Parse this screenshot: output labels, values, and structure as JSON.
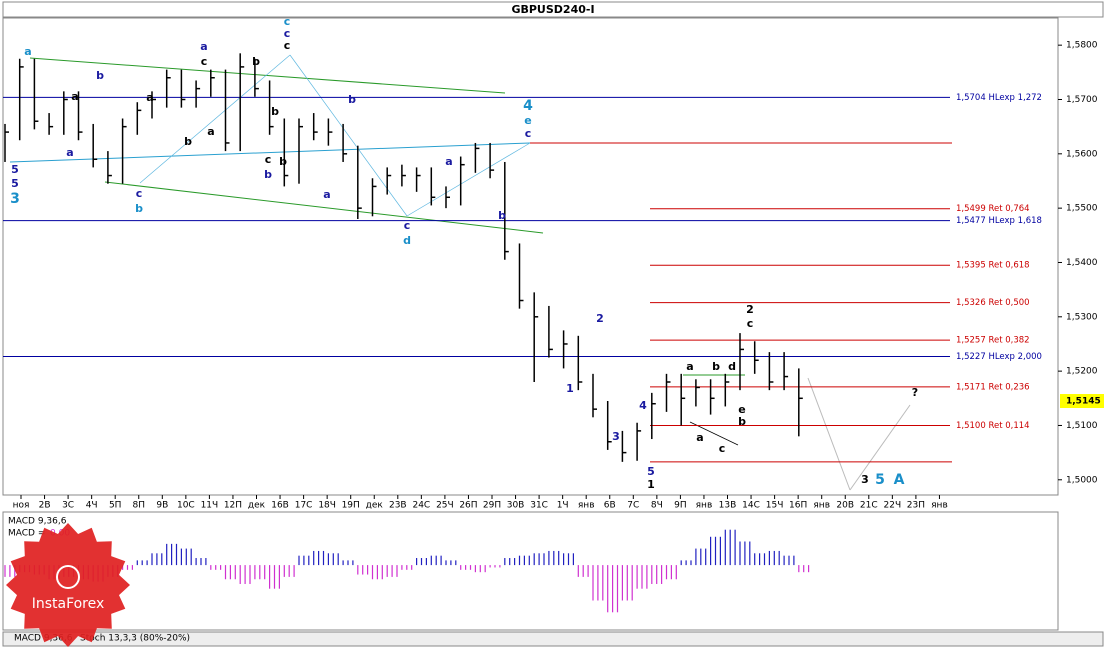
{
  "chart_data": {
    "type": "ohlc",
    "title": "GBPUSD240-I",
    "ylim": [
      1.4972,
      1.585
    ],
    "yticks": [
      {
        "value": 1.5,
        "label": "1,5000"
      },
      {
        "value": 1.51,
        "label": "1,5100"
      },
      {
        "value": 1.52,
        "label": "1,5200"
      },
      {
        "value": 1.53,
        "label": "1,5300"
      },
      {
        "value": 1.54,
        "label": "1,5400"
      },
      {
        "value": 1.55,
        "label": "1,5500"
      },
      {
        "value": 1.56,
        "label": "1,5600"
      },
      {
        "value": 1.57,
        "label": "1,5700"
      },
      {
        "value": 1.58,
        "label": "1,5800"
      }
    ],
    "x_labels": [
      "ноя",
      "2В",
      "3С",
      "4Ч",
      "5П",
      "8П",
      "9В",
      "10С",
      "11Ч",
      "12П",
      "дек",
      "16В",
      "17С",
      "18Ч",
      "19П",
      "дек",
      "23В",
      "24С",
      "25Ч",
      "26П",
      "29П",
      "30В",
      "31С",
      "1Ч",
      "янв",
      "6В",
      "7С",
      "8Ч",
      "9П",
      "янв",
      "13В",
      "14С",
      "15Ч",
      "16П",
      "янв",
      "20В",
      "21С",
      "22Ч",
      "23П",
      "янв"
    ],
    "bar_color": "#000000",
    "high": [
      1.5655,
      1.5775,
      1.5775,
      1.5675,
      1.5715,
      1.5715,
      1.5655,
      1.5605,
      1.5665,
      1.5695,
      1.5715,
      1.5755,
      1.5755,
      1.5735,
      1.5755,
      1.5755,
      1.5785,
      1.5775,
      1.5735,
      1.5665,
      1.5665,
      1.5675,
      1.5665,
      1.5655,
      1.5615,
      1.5555,
      1.5575,
      1.558,
      1.5575,
      1.5575,
      1.554,
      1.5595,
      1.562,
      1.562,
      1.5585,
      1.5435,
      1.5345,
      1.532,
      1.5275,
      1.5265,
      1.5195,
      1.5145,
      1.509,
      1.5105,
      1.516,
      1.5195,
      1.5195,
      1.5185,
      1.5185,
      1.5195,
      1.527,
      1.5255,
      1.5235,
      1.5235,
      1.5205
    ],
    "low": [
      1.5585,
      1.5625,
      1.5645,
      1.5635,
      1.5635,
      1.5625,
      1.5575,
      1.5545,
      1.5545,
      1.5635,
      1.5665,
      1.5685,
      1.5685,
      1.5685,
      1.5705,
      1.5605,
      1.5605,
      1.5705,
      1.5635,
      1.554,
      1.5545,
      1.5625,
      1.5615,
      1.5585,
      1.548,
      1.5485,
      1.5525,
      1.554,
      1.553,
      1.5505,
      1.55,
      1.5505,
      1.5565,
      1.5555,
      1.5405,
      1.5315,
      1.518,
      1.5225,
      1.5205,
      1.5165,
      1.5115,
      1.5055,
      1.5033,
      1.5035,
      1.5075,
      1.5125,
      1.51,
      1.5135,
      1.512,
      1.5135,
      1.5165,
      1.5195,
      1.5165,
      1.5165,
      1.508
    ],
    "close": [
      1.564,
      1.576,
      1.566,
      1.565,
      1.57,
      1.564,
      1.559,
      1.556,
      1.565,
      1.568,
      1.57,
      1.574,
      1.57,
      1.572,
      1.574,
      1.562,
      1.576,
      1.572,
      1.565,
      1.556,
      1.565,
      1.564,
      1.564,
      1.56,
      1.55,
      1.554,
      1.556,
      1.556,
      1.556,
      1.552,
      1.552,
      1.558,
      1.561,
      1.557,
      1.542,
      1.533,
      1.53,
      1.524,
      1.525,
      1.518,
      1.513,
      1.507,
      1.505,
      1.509,
      1.514,
      1.518,
      1.515,
      1.517,
      1.515,
      1.518,
      1.524,
      1.522,
      1.518,
      1.519,
      1.515
    ],
    "last_price": {
      "value": 1.5145,
      "label": "1,5145"
    },
    "levels": [
      {
        "value": 1.5704,
        "label": "1,5704 HLexp 1,272",
        "color": "#0000a0"
      },
      {
        "value": 1.562,
        "color": "#cc0000"
      },
      {
        "value": 1.5499,
        "label": "1,5499 Ret 0,764",
        "color": "#cc0000"
      },
      {
        "value": 1.5477,
        "label": "1,5477 HLexp 1,618",
        "color": "#0000a0"
      },
      {
        "value": 1.5395,
        "label": "1,5395 Ret 0,618",
        "color": "#cc0000"
      },
      {
        "value": 1.5326,
        "label": "1,5326 Ret 0,500",
        "color": "#cc0000"
      },
      {
        "value": 1.5257,
        "label": "1,5257 Ret 0,382",
        "color": "#cc0000"
      },
      {
        "value": 1.5227,
        "label": "1,5227 HLexp 2,000",
        "color": "#0000a0"
      },
      {
        "value": 1.5171,
        "label": "1,5171 Ret 0,236",
        "color": "#cc0000"
      },
      {
        "value": 1.51,
        "label": "1,5100 Ret 0,114",
        "color": "#cc0000"
      },
      {
        "value": 1.5033,
        "color": "#cc0000"
      }
    ],
    "annotations": [
      {
        "text": "a",
        "color": "#1a8fc9"
      },
      {
        "text": "5",
        "color": "#1a1aa0"
      },
      {
        "text": "5",
        "color": "#1a1aa0"
      },
      {
        "text": "3",
        "color": "#1a8fc9"
      },
      {
        "text": "b",
        "color": "#1a1aa0"
      },
      {
        "text": "a",
        "color": "#1a1aa0"
      },
      {
        "text": "a",
        "color": "#000000"
      },
      {
        "text": "c",
        "color": "#1a1aa0"
      },
      {
        "text": "b",
        "color": "#1a8fc9"
      },
      {
        "text": "a",
        "color": "#000000"
      },
      {
        "text": "b",
        "color": "#000000"
      },
      {
        "text": "a",
        "color": "#1a1aa0"
      },
      {
        "text": "c",
        "color": "#000000"
      },
      {
        "text": "a",
        "color": "#000000"
      },
      {
        "text": "c",
        "color": "#1a8fc9"
      },
      {
        "text": "c",
        "color": "#1a1aa0"
      },
      {
        "text": "c",
        "color": "#000000"
      },
      {
        "text": "b",
        "color": "#000000"
      },
      {
        "text": "b",
        "color": "#000000"
      },
      {
        "text": "c",
        "color": "#000000"
      },
      {
        "text": "b",
        "color": "#000000"
      },
      {
        "text": "b",
        "color": "#1a1aa0"
      },
      {
        "text": "a",
        "color": "#1a1aa0"
      },
      {
        "text": "b",
        "color": "#1a1aa0"
      },
      {
        "text": "4",
        "color": "#1a8fc9"
      },
      {
        "text": "e",
        "color": "#1a8fc9"
      },
      {
        "text": "c",
        "color": "#1a1aa0"
      },
      {
        "text": "a",
        "color": "#1a1aa0"
      },
      {
        "text": "b",
        "color": "#1a1aa0"
      },
      {
        "text": "c",
        "color": "#1a1aa0"
      },
      {
        "text": "d",
        "color": "#1a8fc9"
      },
      {
        "text": "1",
        "color": "#1a1aa0"
      },
      {
        "text": "2",
        "color": "#1a1aa0"
      },
      {
        "text": "3",
        "color": "#1a1aa0"
      },
      {
        "text": "4",
        "color": "#1a1aa0"
      },
      {
        "text": "5",
        "color": "#1a1aa0"
      },
      {
        "text": "1",
        "color": "#000000"
      },
      {
        "text": "2",
        "color": "#000000"
      },
      {
        "text": "c",
        "color": "#000000"
      },
      {
        "text": "a",
        "color": "#000000"
      },
      {
        "text": "b",
        "color": "#000000"
      },
      {
        "text": "d",
        "color": "#000000"
      },
      {
        "text": "b",
        "color": "#000000"
      },
      {
        "text": "e",
        "color": "#000000"
      },
      {
        "text": "a",
        "color": "#000000"
      },
      {
        "text": "c",
        "color": "#000000"
      },
      {
        "text": "?",
        "color": "#000000"
      },
      {
        "text": "3",
        "color": "#000000"
      },
      {
        "text": "5",
        "color": "#1a8fc9"
      },
      {
        "text": "A",
        "color": "#1a8fc9"
      }
    ],
    "macd_title": "MACD 9,36,6",
    "macd_readout_label": "MACD =",
    "macd_readout_value": "0.00",
    "macd_lim": [
      -0.0055,
      0.0045
    ],
    "macd_positive_color": "#2020c0",
    "macd_negative_color": "#d030d0",
    "macd": [
      -0.001,
      -0.0006,
      -0.0008,
      -0.0012,
      -0.001,
      -0.0012,
      -0.0014,
      -0.001,
      -0.0004,
      0.0004,
      0.001,
      0.0018,
      0.0014,
      0.0006,
      -0.0004,
      -0.0012,
      -0.0016,
      -0.0012,
      -0.002,
      -0.001,
      0.0008,
      0.0012,
      0.001,
      0.0004,
      -0.0008,
      -0.0012,
      -0.001,
      -0.0004,
      0.0006,
      0.0008,
      0.0004,
      -0.0004,
      -0.0006,
      -0.0002,
      0.0006,
      0.0008,
      0.001,
      0.0012,
      0.001,
      -0.001,
      -0.003,
      -0.004,
      -0.003,
      -0.002,
      -0.0016,
      -0.0012,
      0.0004,
      0.0014,
      0.0024,
      0.003,
      0.002,
      0.001,
      0.0012,
      0.0008,
      -0.0006
    ],
    "tabs": [
      "MACD 9,36,6",
      "Stoch 13,3,3 (80%-20%)"
    ],
    "watermark": "InstaForex"
  }
}
